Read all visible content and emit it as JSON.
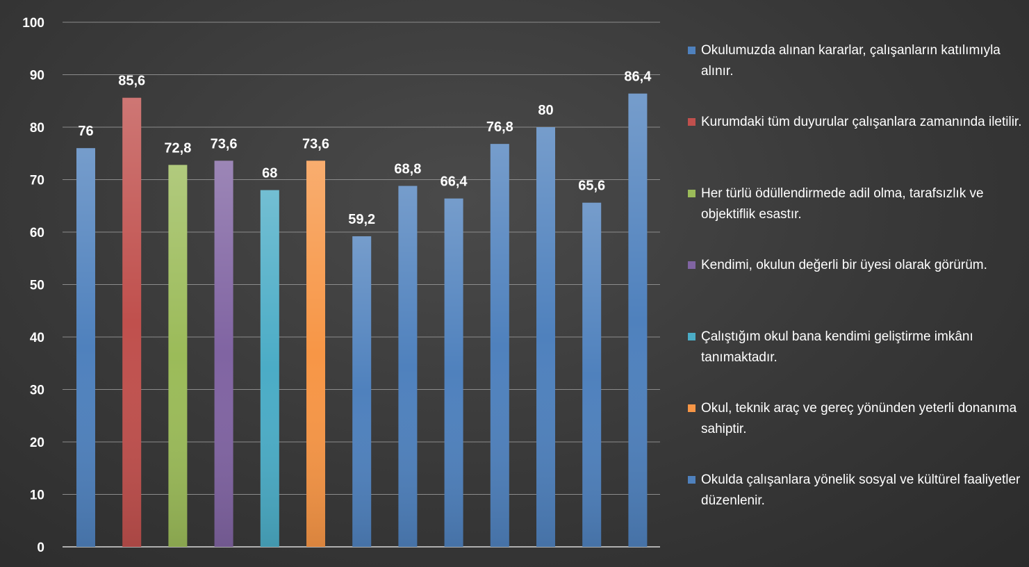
{
  "chart_data": {
    "type": "bar",
    "title": "",
    "xlabel": "",
    "ylabel": "",
    "ylim": [
      0,
      100
    ],
    "yticks": [
      "0",
      "10",
      "20",
      "30",
      "40",
      "50",
      "60",
      "70",
      "80",
      "90",
      "100"
    ],
    "grid": true,
    "legend_position": "right",
    "values": [
      76,
      85.6,
      72.8,
      73.6,
      68,
      73.6,
      59.2,
      68.8,
      66.4,
      76.8,
      80,
      65.6,
      86.4
    ],
    "data_labels": [
      "76",
      "85,6",
      "72,8",
      "73,6",
      "68",
      "73,6",
      "59,2",
      "68,8",
      "66,4",
      "76,8",
      "80",
      "65,6",
      "86,4"
    ],
    "bar_colors": [
      "#4f81bd",
      "#c0504d",
      "#9bbb59",
      "#8064a2",
      "#4bacc6",
      "#f79646",
      "#4f81bd",
      "#4f81bd",
      "#4f81bd",
      "#4f81bd",
      "#4f81bd",
      "#4f81bd",
      "#4f81bd"
    ],
    "legend": [
      {
        "label": "Okulumuzda alınan kararlar, çalışanların katılımıyla alınır.",
        "color": "#4f81bd"
      },
      {
        "label": "Kurumdaki tüm duyurular çalışanlara zamanında iletilir.",
        "color": "#c0504d"
      },
      {
        "label": "Her türlü ödüllendirmede adil olma, tarafsızlık ve objektiflik esastır.",
        "color": "#9bbb59"
      },
      {
        "label": "Kendimi, okulun değerli bir üyesi olarak görürüm.",
        "color": "#8064a2"
      },
      {
        "label": "Çalıştığım okul bana kendimi geliştirme imkânı tanımaktadır.",
        "color": "#4bacc6"
      },
      {
        "label": "Okul, teknik araç ve gereç yönünden yeterli donanıma sahiptir.",
        "color": "#f79646"
      },
      {
        "label": "Okulda çalışanlara yönelik sosyal ve kültürel faaliyetler düzenlenir.",
        "color": "#4f81bd"
      }
    ]
  }
}
